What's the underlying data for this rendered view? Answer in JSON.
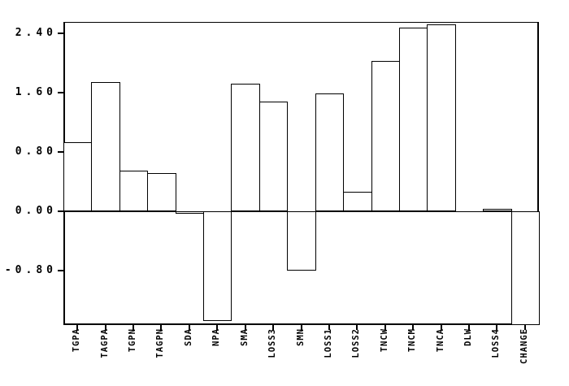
{
  "chart_data": {
    "type": "bar",
    "title": "",
    "xlabel": "",
    "ylabel": "",
    "categories": [
      "TGPA",
      "TAGPA",
      "TGPN",
      "TAGPN",
      "SDA",
      "NPA",
      "SMA",
      "LOSS3",
      "SMN",
      "LOSS1",
      "LOSS2",
      "TNCW",
      "TNCM",
      "TNCA",
      "DLW",
      "LOSS4",
      "CHANGE"
    ],
    "values": [
      0.93,
      1.74,
      0.55,
      0.52,
      -0.03,
      -1.47,
      1.72,
      1.48,
      -0.8,
      1.59,
      0.26,
      2.03,
      2.47,
      2.52,
      0.0,
      0.03,
      -1.53
    ],
    "yticks": [
      2.4,
      1.6,
      0.8,
      0.0,
      -0.8
    ],
    "ytick_labels": [
      "2.40",
      "1.60",
      "0.80",
      "0.00",
      "-0.80"
    ],
    "ylim": [
      -1.53,
      2.55
    ],
    "grid": false,
    "legend": "none",
    "bar_fill": "#ffffff",
    "line_color": "#000000",
    "background": "#ffffff"
  }
}
